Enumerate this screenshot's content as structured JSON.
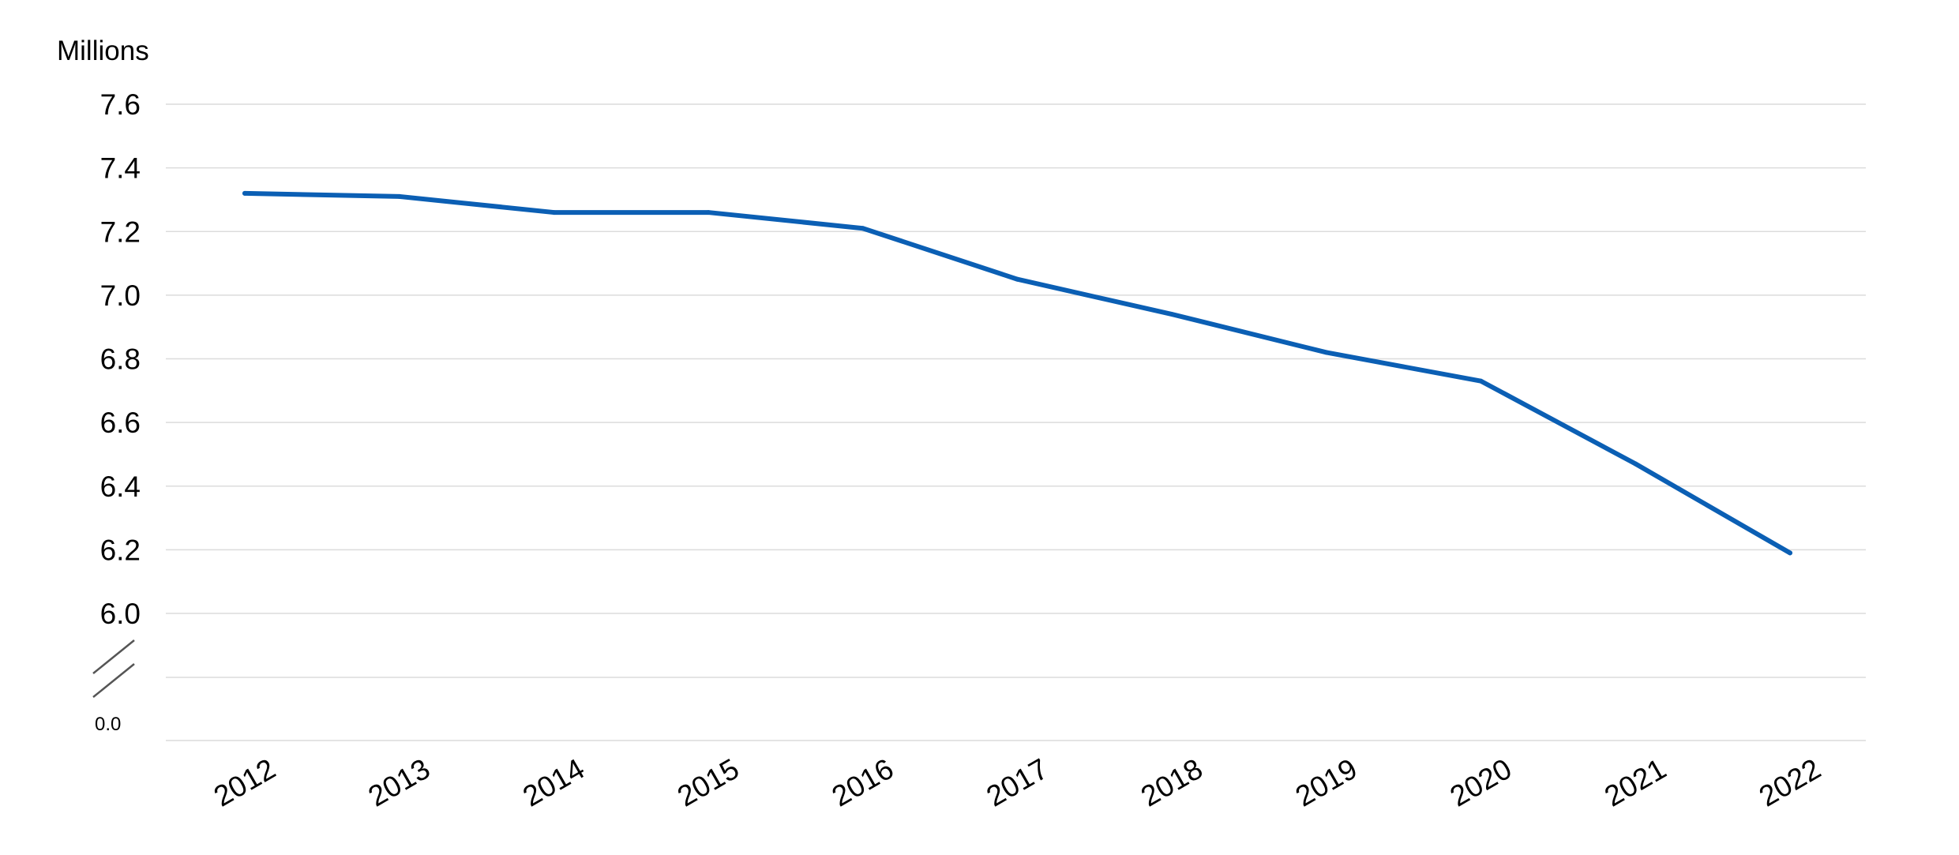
{
  "colors": {
    "series": "#0b5fb4",
    "grid": "#dcdcdc",
    "break_mark": "#555555"
  },
  "chart_data": {
    "type": "line",
    "ylabel": "Millions",
    "x": [
      "2012",
      "2013",
      "2014",
      "2015",
      "2016",
      "2017",
      "2018",
      "2019",
      "2020",
      "2021",
      "2022"
    ],
    "series": [
      {
        "values": [
          7.32,
          7.31,
          7.26,
          7.26,
          7.21,
          7.05,
          6.94,
          6.82,
          6.73,
          6.47,
          6.19
        ]
      }
    ],
    "y_ticks": [
      "7.6",
      "7.4",
      "7.2",
      "7.0",
      "6.8",
      "6.6",
      "6.4",
      "6.2",
      "6.0"
    ],
    "y_zero_label": "0.0",
    "ylim": [
      6.0,
      7.6
    ],
    "axis_break": true,
    "grid": true,
    "legend": "none"
  }
}
